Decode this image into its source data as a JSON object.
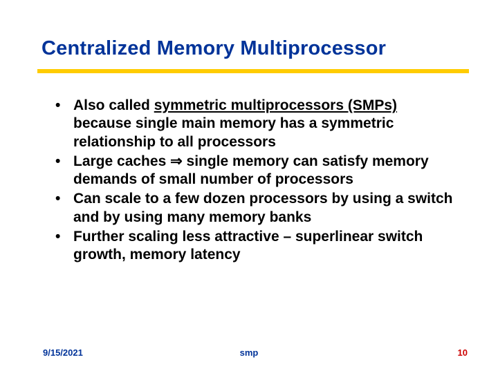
{
  "title": "Centralized Memory Multiprocessor",
  "accent_color": "#ffcc00",
  "title_color": "#003399",
  "text_color": "#000000",
  "bullets": [
    {
      "pre": "Also called ",
      "underline": "symmetric multiprocessors (SMPs)",
      "post": " because single main memory has a symmetric relationship to all processors"
    },
    {
      "text": "Large caches ⇒ single memory can satisfy memory demands of small number of processors"
    },
    {
      "text": "Can scale to a few dozen processors by using a switch and by using many memory banks"
    },
    {
      "text": "Further scaling less attractive – superlinear switch growth, memory latency"
    }
  ],
  "footer": {
    "date": "9/15/2021",
    "center": "smp",
    "page": "10",
    "date_color": "#003399",
    "center_color": "#003399",
    "page_color": "#cc0000"
  }
}
